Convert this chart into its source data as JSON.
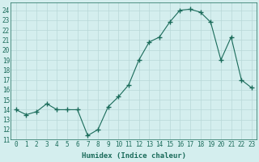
{
  "x": [
    0,
    1,
    2,
    3,
    4,
    5,
    6,
    7,
    8,
    9,
    10,
    11,
    12,
    13,
    14,
    15,
    16,
    17,
    18,
    19,
    20,
    21,
    22,
    23
  ],
  "y": [
    14.0,
    13.5,
    13.8,
    14.6,
    14.0,
    14.0,
    14.0,
    11.4,
    12.0,
    14.3,
    15.3,
    16.5,
    19.0,
    20.8,
    21.3,
    22.8,
    24.0,
    24.1,
    23.8,
    22.8,
    19.0,
    21.3,
    17.0,
    16.2
  ],
  "xlabel": "Humidex (Indice chaleur)",
  "xlim": [
    -0.5,
    23.5
  ],
  "ylim": [
    11,
    24.8
  ],
  "yticks": [
    11,
    12,
    13,
    14,
    15,
    16,
    17,
    18,
    19,
    20,
    21,
    22,
    23,
    24
  ],
  "xticks": [
    0,
    1,
    2,
    3,
    4,
    5,
    6,
    7,
    8,
    9,
    10,
    11,
    12,
    13,
    14,
    15,
    16,
    17,
    18,
    19,
    20,
    21,
    22,
    23
  ],
  "line_color": "#1a6b5a",
  "marker": "+",
  "marker_size": 4,
  "marker_linewidth": 1.0,
  "line_width": 0.8,
  "bg_color": "#d4eeee",
  "grid_color": "#b8d8d8",
  "label_fontsize": 6.5,
  "tick_fontsize": 5.5
}
